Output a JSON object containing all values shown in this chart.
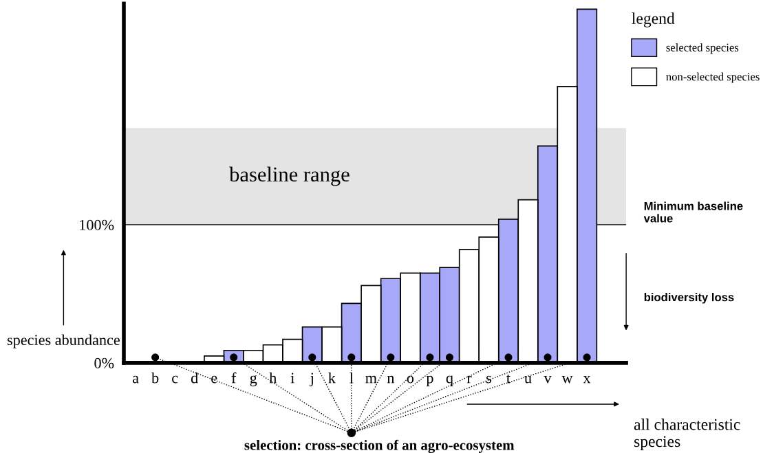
{
  "chart_data": {
    "type": "bar",
    "categories": [
      "a",
      "b",
      "c",
      "d",
      "e",
      "f",
      "g",
      "h",
      "i",
      "j",
      "k",
      "l",
      "m",
      "n",
      "o",
      "p",
      "q",
      "r",
      "s",
      "t",
      "u",
      "v",
      "w",
      "x"
    ],
    "series": [
      {
        "name": "selected species",
        "color": "#a8a8f8",
        "values": [
          null,
          0,
          null,
          null,
          null,
          9,
          null,
          null,
          null,
          26,
          null,
          43,
          null,
          61,
          null,
          65,
          69,
          null,
          null,
          104,
          null,
          157,
          null,
          256
        ]
      },
      {
        "name": "non-selected species",
        "color": "#ffffff",
        "values": [
          null,
          null,
          null,
          null,
          5,
          null,
          9,
          13,
          17,
          null,
          26,
          null,
          56,
          null,
          65,
          null,
          null,
          82,
          91,
          null,
          118,
          null,
          200,
          null
        ]
      }
    ],
    "ylim": [
      0,
      260
    ],
    "yticks": [
      {
        "value": 0,
        "label": "0%"
      },
      {
        "value": 100,
        "label": "100%"
      }
    ],
    "ylabel": "species abundance",
    "xlabel": "all characteristic species",
    "legend_title": "legend",
    "legend": "top right",
    "grid": false,
    "bands": [
      {
        "axis": "y",
        "from": 100,
        "to": 170,
        "label": "baseline range",
        "color": "#e4e4e4"
      }
    ],
    "ref_lines": [
      {
        "axis": "y",
        "value": 100,
        "label": "Minimum baseline value",
        "color": "#000000",
        "line_style": "solid"
      }
    ],
    "annotations": [
      "biodiversity loss",
      "selection: cross-section of an agro-ecosystem"
    ]
  }
}
